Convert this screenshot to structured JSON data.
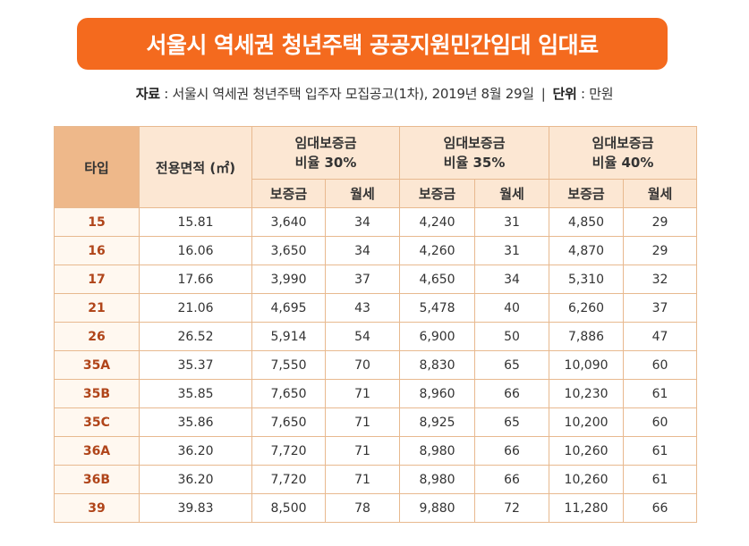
{
  "title": "서울시 역세권 청년주택 공공지원민간임대 임대료",
  "source": {
    "source_label": "자료",
    "source_text": " : 서울시 역세권 청년주택 입주자 모집공고(1차), 2019년 8월 29일",
    "separator": "|",
    "unit_label": "단위",
    "unit_text": " : 만원"
  },
  "table": {
    "type_header": "타입",
    "area_header": "전용면적 (㎡)",
    "groups": [
      {
        "line1": "임대보증금",
        "line2": "비율 30%"
      },
      {
        "line1": "임대보증금",
        "line2": "비율 35%"
      },
      {
        "line1": "임대보증금",
        "line2": "비율 40%"
      }
    ],
    "sub_headers": [
      "보증금",
      "월세",
      "보증금",
      "월세",
      "보증금",
      "월세"
    ],
    "rows": [
      [
        "15",
        "15.81",
        "3,640",
        "34",
        "4,240",
        "31",
        "4,850",
        "29"
      ],
      [
        "16",
        "16.06",
        "3,650",
        "34",
        "4,260",
        "31",
        "4,870",
        "29"
      ],
      [
        "17",
        "17.66",
        "3,990",
        "37",
        "4,650",
        "34",
        "5,310",
        "32"
      ],
      [
        "21",
        "21.06",
        "4,695",
        "43",
        "5,478",
        "40",
        "6,260",
        "37"
      ],
      [
        "26",
        "26.52",
        "5,914",
        "54",
        "6,900",
        "50",
        "7,886",
        "47"
      ],
      [
        "35A",
        "35.37",
        "7,550",
        "70",
        "8,830",
        "65",
        "10,090",
        "60"
      ],
      [
        "35B",
        "35.85",
        "7,650",
        "71",
        "8,960",
        "66",
        "10,230",
        "61"
      ],
      [
        "35C",
        "35.86",
        "7,650",
        "71",
        "8,925",
        "65",
        "10,200",
        "60"
      ],
      [
        "36A",
        "36.20",
        "7,720",
        "71",
        "8,980",
        "66",
        "10,260",
        "61"
      ],
      [
        "36B",
        "36.20",
        "7,720",
        "71",
        "8,980",
        "66",
        "10,260",
        "61"
      ],
      [
        "39",
        "39.83",
        "8,500",
        "78",
        "9,880",
        "72",
        "11,280",
        "66"
      ]
    ]
  }
}
